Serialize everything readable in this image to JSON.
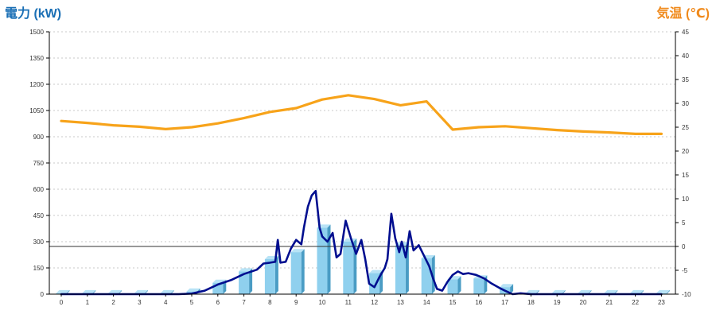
{
  "chart_data": {
    "type": "bar+line",
    "left_axis_title": "電力 (kW)",
    "right_axis_title": "気温 (℃)",
    "colors": {
      "left_title": "#1a6fb5",
      "right_title": "#f08a1c",
      "bar_front": "#8fd0ee",
      "bar_side": "#4a9cc4",
      "bar_top": "#b8e3f6",
      "power_line": "#000e8f",
      "temp_line": "#f7a31a",
      "grid": "#c8c8c8"
    },
    "grid": "dashed horizontal",
    "y_left": {
      "min": 0,
      "max": 1500,
      "step": 150,
      "ticks": [
        "0",
        "150",
        "300",
        "450",
        "600",
        "750",
        "900",
        "1050",
        "1200",
        "1350",
        "1500"
      ]
    },
    "y_right": {
      "min": -10,
      "max": 45,
      "step": 5,
      "ticks": [
        "-10",
        "-5",
        "0",
        "5",
        "10",
        "15",
        "20",
        "25",
        "30",
        "35",
        "40",
        "45"
      ]
    },
    "x_hours": [
      "0",
      "1",
      "2",
      "3",
      "4",
      "5",
      "6",
      "7",
      "8",
      "9",
      "10",
      "11",
      "12",
      "13",
      "14",
      "15",
      "16",
      "17",
      "18",
      "19",
      "20",
      "21",
      "22",
      "23"
    ],
    "bars_kw": [
      5,
      5,
      5,
      5,
      5,
      15,
      65,
      130,
      200,
      240,
      380,
      300,
      120,
      280,
      205,
      85,
      90,
      40,
      5,
      5,
      5,
      5,
      5,
      5
    ],
    "power_line_kw": [
      [
        0,
        0
      ],
      [
        1,
        0
      ],
      [
        2,
        0
      ],
      [
        3,
        0
      ],
      [
        4,
        0
      ],
      [
        4.5,
        0
      ],
      [
        5,
        3
      ],
      [
        5.5,
        20
      ],
      [
        6,
        55
      ],
      [
        6.5,
        80
      ],
      [
        7,
        115
      ],
      [
        7.5,
        140
      ],
      [
        7.75,
        175
      ],
      [
        8,
        180
      ],
      [
        8.2,
        185
      ],
      [
        8.3,
        310
      ],
      [
        8.4,
        180
      ],
      [
        8.6,
        185
      ],
      [
        8.8,
        260
      ],
      [
        9,
        310
      ],
      [
        9.2,
        285
      ],
      [
        9.3,
        380
      ],
      [
        9.45,
        500
      ],
      [
        9.6,
        565
      ],
      [
        9.75,
        590
      ],
      [
        9.9,
        380
      ],
      [
        10,
        330
      ],
      [
        10.2,
        300
      ],
      [
        10.4,
        350
      ],
      [
        10.55,
        210
      ],
      [
        10.7,
        230
      ],
      [
        10.9,
        420
      ],
      [
        11.1,
        320
      ],
      [
        11.3,
        230
      ],
      [
        11.5,
        310
      ],
      [
        11.65,
        200
      ],
      [
        11.8,
        60
      ],
      [
        12,
        40
      ],
      [
        12.2,
        100
      ],
      [
        12.4,
        150
      ],
      [
        12.5,
        200
      ],
      [
        12.65,
        460
      ],
      [
        12.8,
        320
      ],
      [
        12.95,
        240
      ],
      [
        13.05,
        300
      ],
      [
        13.2,
        210
      ],
      [
        13.35,
        360
      ],
      [
        13.5,
        250
      ],
      [
        13.7,
        280
      ],
      [
        13.9,
        220
      ],
      [
        14.1,
        160
      ],
      [
        14.25,
        90
      ],
      [
        14.4,
        30
      ],
      [
        14.6,
        20
      ],
      [
        14.8,
        70
      ],
      [
        15,
        110
      ],
      [
        15.2,
        130
      ],
      [
        15.4,
        115
      ],
      [
        15.6,
        120
      ],
      [
        15.9,
        110
      ],
      [
        16.2,
        90
      ],
      [
        16.5,
        60
      ],
      [
        16.8,
        35
      ],
      [
        17,
        20
      ],
      [
        17.3,
        0
      ],
      [
        17.6,
        5
      ],
      [
        18,
        0
      ],
      [
        19,
        0
      ],
      [
        20,
        0
      ],
      [
        21,
        0
      ],
      [
        22,
        0
      ],
      [
        23,
        0
      ]
    ],
    "temp_line_c": [
      [
        0,
        26.3
      ],
      [
        1,
        25.9
      ],
      [
        2,
        25.4
      ],
      [
        3,
        25.1
      ],
      [
        4,
        24.6
      ],
      [
        5,
        25.0
      ],
      [
        6,
        25.8
      ],
      [
        7,
        26.9
      ],
      [
        8,
        28.2
      ],
      [
        9,
        29.0
      ],
      [
        10,
        30.8
      ],
      [
        11,
        31.7
      ],
      [
        12,
        30.9
      ],
      [
        13,
        29.6
      ],
      [
        14,
        30.4
      ],
      [
        15,
        24.5
      ],
      [
        16,
        25.0
      ],
      [
        17,
        25.2
      ],
      [
        18,
        24.8
      ],
      [
        19,
        24.4
      ],
      [
        20,
        24.1
      ],
      [
        21,
        23.9
      ],
      [
        22,
        23.6
      ],
      [
        23,
        23.6
      ]
    ],
    "reference_line_c": 0
  }
}
